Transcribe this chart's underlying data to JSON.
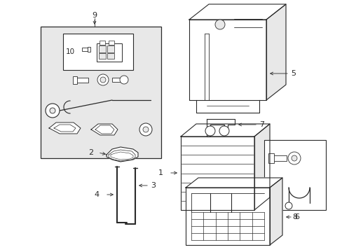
{
  "bg_color": "#ffffff",
  "line_color": "#2a2a2a",
  "fill_gray": "#e8e8e8",
  "white": "#ffffff"
}
